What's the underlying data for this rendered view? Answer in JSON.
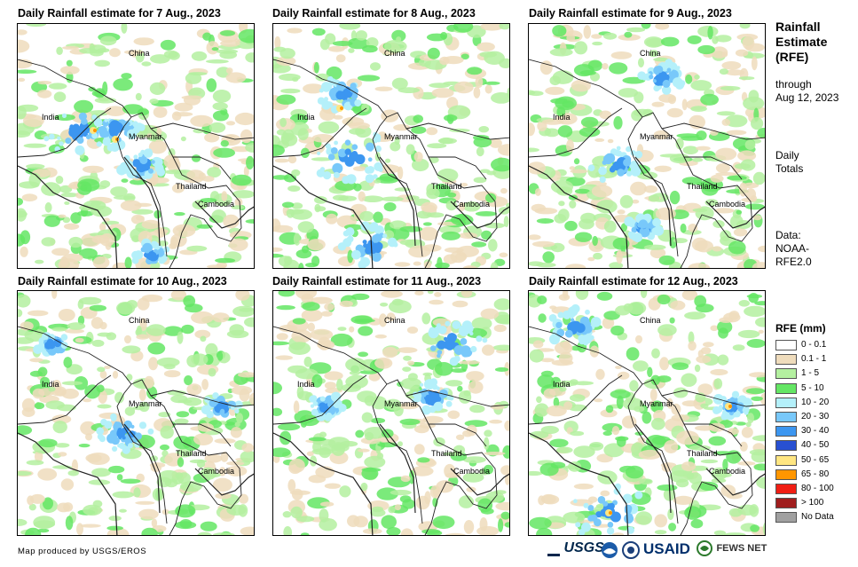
{
  "panels": [
    {
      "title": "Daily Rainfall estimate for 7 Aug., 2023"
    },
    {
      "title": "Daily Rainfall estimate for 8 Aug., 2023"
    },
    {
      "title": "Daily Rainfall estimate for 9 Aug., 2023"
    },
    {
      "title": "Daily Rainfall estimate for 10 Aug., 2023"
    },
    {
      "title": "Daily Rainfall estimate for 11 Aug., 2023"
    },
    {
      "title": "Daily Rainfall estimate for 12 Aug., 2023"
    }
  ],
  "place_labels": {
    "china": "China",
    "india": "India",
    "myanmar": "Myanmar",
    "thailand": "Thailand",
    "cambodia": "Cambodia"
  },
  "side": {
    "title_line1": "Rainfall",
    "title_line2": "Estimate",
    "title_line3": "(RFE)",
    "through": "through",
    "through_date": "Aug 12, 2023",
    "daily": "Daily",
    "totals": "Totals",
    "data_label": "Data:",
    "data_src1": "NOAA-",
    "data_src2": "RFE2.0"
  },
  "legend": {
    "title": "RFE (mm)",
    "items": [
      {
        "label": "0 - 0.1",
        "color": "#ffffff"
      },
      {
        "label": "0.1 - 1",
        "color": "#efdcbc"
      },
      {
        "label": "1 - 5",
        "color": "#b4f0a0"
      },
      {
        "label": "5 - 10",
        "color": "#64e664"
      },
      {
        "label": "10 - 20",
        "color": "#b4f0fa"
      },
      {
        "label": "20 - 30",
        "color": "#78c8fa"
      },
      {
        "label": "30 - 40",
        "color": "#3c96f0"
      },
      {
        "label": "40 - 50",
        "color": "#2850d2"
      },
      {
        "label": "50 - 65",
        "color": "#ffe682"
      },
      {
        "label": "65 - 80",
        "color": "#ff9600"
      },
      {
        "label": "80 - 100",
        "color": "#f01e14"
      },
      {
        "label": "> 100",
        "color": "#a01e1e"
      },
      {
        "label": "No Data",
        "color": "#a0a0a0"
      }
    ]
  },
  "footer": "Map produced by USGS/EROS",
  "logos": {
    "usgs": "USGS",
    "usaid": "USAID",
    "fewsnet": "FEWS NET"
  }
}
